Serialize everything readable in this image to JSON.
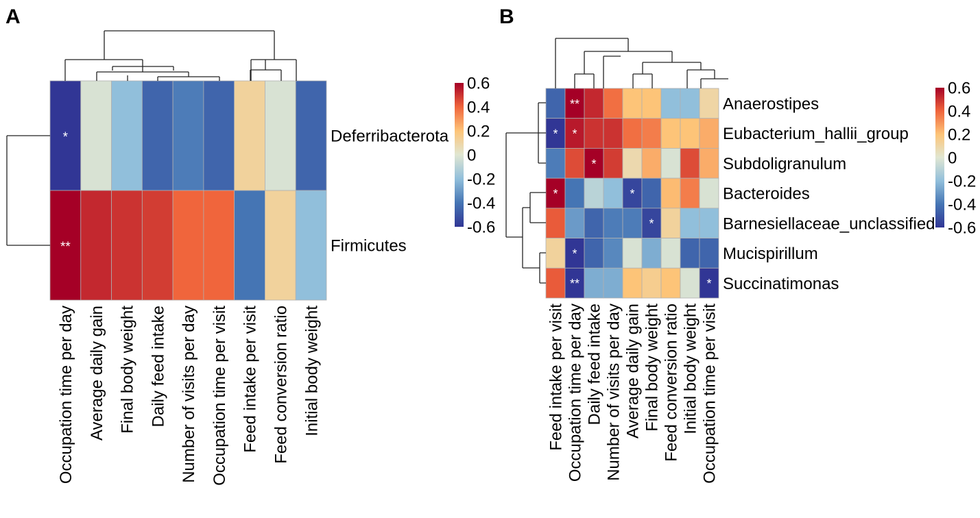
{
  "chart_data": [
    {
      "panel_label": "A",
      "type": "heatmap",
      "columns": [
        "Occupation time per day",
        "Average daily gain",
        "Final body weight",
        "Daily feed intake",
        "Number of visits per day",
        "Occupation time per visit",
        "Feed intake per visit",
        "Feed conversion ratio",
        "Initial body weight"
      ],
      "rows": [
        "Deferribacterota",
        "Firmicutes"
      ],
      "values": [
        [
          -0.6,
          -0.02,
          -0.2,
          -0.45,
          -0.38,
          -0.45,
          0.12,
          -0.02,
          -0.45
        ],
        [
          0.6,
          0.52,
          0.5,
          0.48,
          0.4,
          0.4,
          -0.4,
          0.12,
          -0.2
        ]
      ],
      "annotations": [
        [
          "*",
          "",
          "",
          "",
          "",
          "",
          "",
          "",
          ""
        ],
        [
          "**",
          "",
          "",
          "",
          "",
          "",
          "",
          "",
          ""
        ]
      ],
      "colorbar": {
        "min": -0.6,
        "max": 0.6,
        "ticks": [
          "0.6",
          "0.4",
          "0.2",
          "0",
          "-0.2",
          "-0.4",
          "-0.6"
        ]
      }
    },
    {
      "panel_label": "B",
      "type": "heatmap",
      "columns": [
        "Feed intake per visit",
        "Occupation time per day",
        "Daily feed intake",
        "Number of visits per day",
        "Average daily gain",
        "Final body weight",
        "Feed conversion ratio",
        "Initial body weight",
        "Occupation time per visit"
      ],
      "rows": [
        "Anaerostipes",
        "Eubacterium_hallii_group",
        "Subdoligranulum",
        "Bacteroides",
        "Barnesiellaceae_unclassified",
        "Mucispirillum",
        "Succinatimonas"
      ],
      "values": [
        [
          -0.45,
          0.6,
          0.52,
          0.38,
          0.2,
          0.2,
          -0.2,
          -0.2,
          0.1
        ],
        [
          -0.6,
          0.55,
          0.5,
          0.5,
          0.38,
          0.35,
          0.2,
          0.2,
          0.25
        ],
        [
          -0.38,
          0.45,
          0.6,
          0.48,
          0.08,
          0.25,
          -0.02,
          0.45,
          0.25
        ],
        [
          0.6,
          -0.4,
          -0.1,
          -0.2,
          -0.55,
          -0.45,
          0.22,
          0.35,
          -0.02
        ],
        [
          0.42,
          -0.3,
          -0.45,
          -0.38,
          -0.38,
          -0.55,
          0.12,
          -0.2,
          -0.2
        ],
        [
          0.12,
          -0.6,
          -0.45,
          -0.35,
          -0.02,
          -0.25,
          -0.02,
          -0.45,
          -0.45
        ],
        [
          0.42,
          -0.6,
          -0.25,
          -0.25,
          0.2,
          0.15,
          0.2,
          -0.02,
          -0.6
        ]
      ],
      "annotations": [
        [
          "",
          "**",
          "",
          "",
          "",
          "",
          "",
          "",
          ""
        ],
        [
          "*",
          "*",
          "",
          "",
          "",
          "",
          "",
          "",
          ""
        ],
        [
          "",
          "",
          "*",
          "",
          "",
          "",
          "",
          "",
          ""
        ],
        [
          "*",
          "",
          "",
          "",
          "*",
          "",
          "",
          "",
          ""
        ],
        [
          "",
          "",
          "",
          "",
          "",
          "*",
          "",
          "",
          ""
        ],
        [
          "",
          "*",
          "",
          "",
          "",
          "",
          "",
          "",
          ""
        ],
        [
          "",
          "**",
          "",
          "",
          "",
          "",
          "",
          "",
          "*"
        ]
      ],
      "colorbar": {
        "min": -0.6,
        "max": 0.6,
        "ticks": [
          "0.6",
          "0.4",
          "0.2",
          "0",
          "-0.2",
          "-0.4",
          "-0.6"
        ]
      }
    }
  ]
}
